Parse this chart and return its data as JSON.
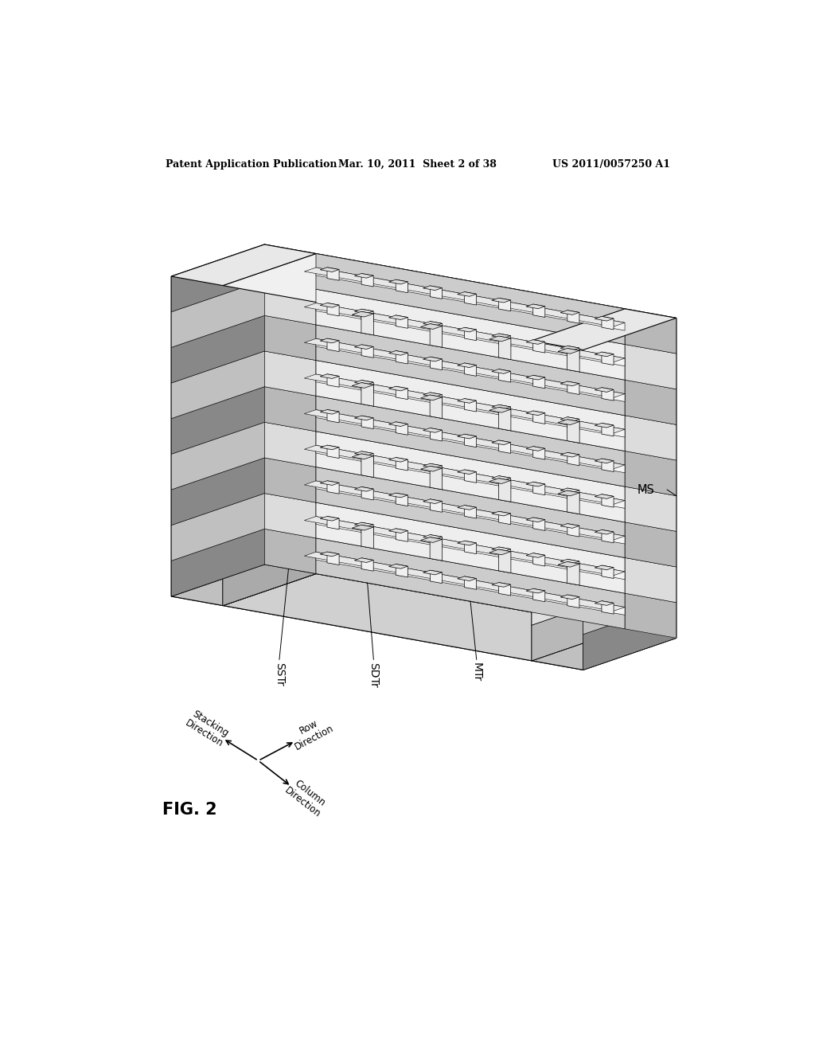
{
  "background_color": "#ffffff",
  "header_left": "Patent Application Publication",
  "header_center": "Mar. 10, 2011  Sheet 2 of 38",
  "header_right": "US 2011/0057250 A1",
  "fig_label": "FIG. 2",
  "labels": [
    "SSTr",
    "SDTr",
    "MTr",
    "MS"
  ],
  "title_color": "#000000",
  "line_color": "#000000"
}
